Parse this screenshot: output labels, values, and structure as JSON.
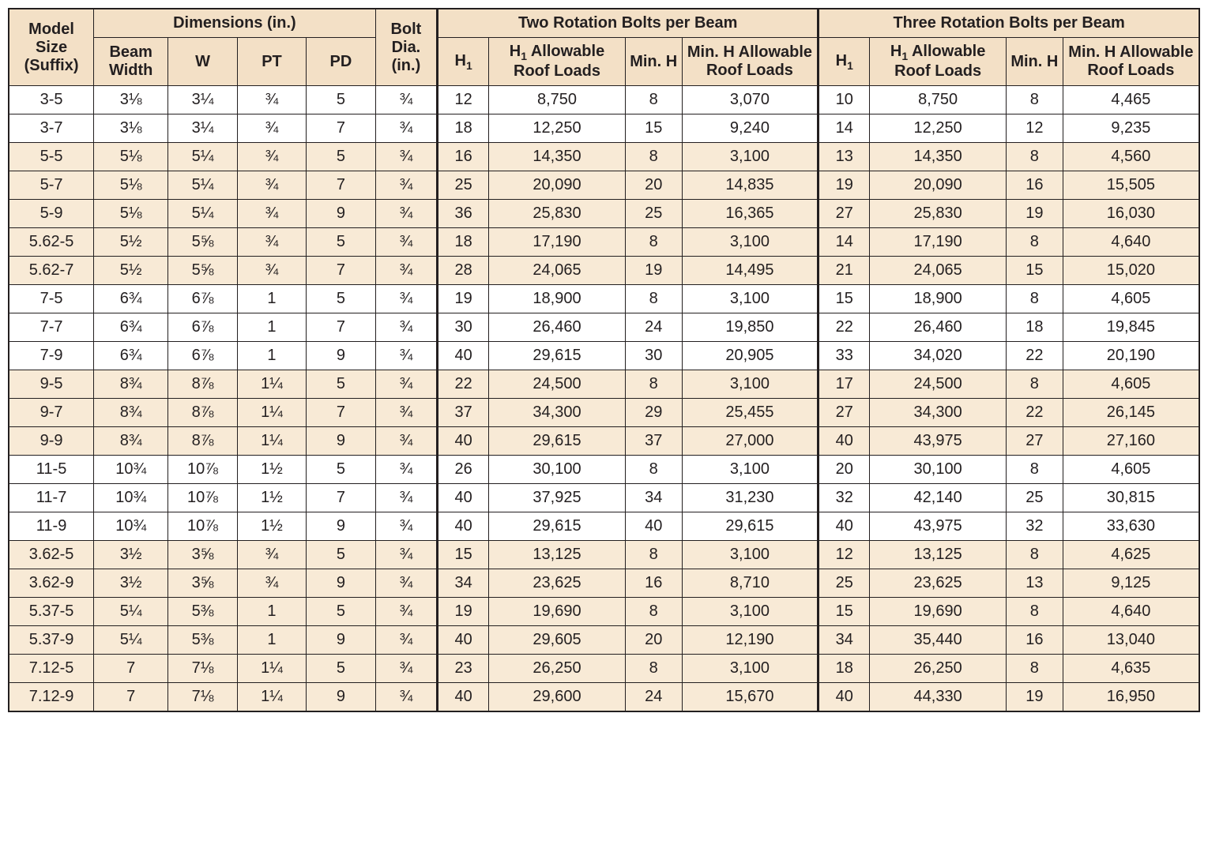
{
  "colors": {
    "header_bg": "#f3e0c6",
    "row_bg": "#ffffff",
    "row_tint_bg": "#f8ead6",
    "border": "#231f20",
    "text": "#231f20"
  },
  "typography": {
    "font_family": "Arial, Helvetica, sans-serif",
    "header_fontsize_pt": 16,
    "body_fontsize_pt": 15,
    "header_weight": 700,
    "body_weight": 400
  },
  "table": {
    "type": "table",
    "header": {
      "model_size": "Model Size (Suffix)",
      "dimensions_group": "Dimensions (in.)",
      "beam_width": "Beam Width",
      "w": "W",
      "pt": "PT",
      "pd": "PD",
      "bolt_dia": "Bolt Dia. (in.)",
      "two_bolts_group": "Two Rotation Bolts per Beam",
      "three_bolts_group": "Three Rotation Bolts per Beam",
      "h1": "H",
      "h1_sub": "1",
      "h1_loads": " Allowable Roof Loads",
      "min_h": "Min. H",
      "min_h_loads": "Min. H Allowable Roof Loads"
    },
    "columns": [
      "model",
      "beam_width",
      "w",
      "pt",
      "pd",
      "bolt_dia",
      "two_h1",
      "two_h1_load",
      "two_min_h",
      "two_min_h_load",
      "three_h1",
      "three_h1_load",
      "three_min_h",
      "three_min_h_load"
    ],
    "rows": [
      {
        "tint": false,
        "model": "3-5",
        "beam_width": "3⅛",
        "w": "3¼",
        "pt": "¾",
        "pd": "5",
        "bolt_dia": "¾",
        "two_h1": "12",
        "two_h1_load": "8,750",
        "two_min_h": "8",
        "two_min_h_load": "3,070",
        "three_h1": "10",
        "three_h1_load": "8,750",
        "three_min_h": "8",
        "three_min_h_load": "4,465"
      },
      {
        "tint": false,
        "model": "3-7",
        "beam_width": "3⅛",
        "w": "3¼",
        "pt": "¾",
        "pd": "7",
        "bolt_dia": "¾",
        "two_h1": "18",
        "two_h1_load": "12,250",
        "two_min_h": "15",
        "two_min_h_load": "9,240",
        "three_h1": "14",
        "three_h1_load": "12,250",
        "three_min_h": "12",
        "three_min_h_load": "9,235"
      },
      {
        "tint": true,
        "model": "5-5",
        "beam_width": "5⅛",
        "w": "5¼",
        "pt": "¾",
        "pd": "5",
        "bolt_dia": "¾",
        "two_h1": "16",
        "two_h1_load": "14,350",
        "two_min_h": "8",
        "two_min_h_load": "3,100",
        "three_h1": "13",
        "three_h1_load": "14,350",
        "three_min_h": "8",
        "three_min_h_load": "4,560"
      },
      {
        "tint": true,
        "model": "5-7",
        "beam_width": "5⅛",
        "w": "5¼",
        "pt": "¾",
        "pd": "7",
        "bolt_dia": "¾",
        "two_h1": "25",
        "two_h1_load": "20,090",
        "two_min_h": "20",
        "two_min_h_load": "14,835",
        "three_h1": "19",
        "three_h1_load": "20,090",
        "three_min_h": "16",
        "three_min_h_load": "15,505"
      },
      {
        "tint": true,
        "model": "5-9",
        "beam_width": "5⅛",
        "w": "5¼",
        "pt": "¾",
        "pd": "9",
        "bolt_dia": "¾",
        "two_h1": "36",
        "two_h1_load": "25,830",
        "two_min_h": "25",
        "two_min_h_load": "16,365",
        "three_h1": "27",
        "three_h1_load": "25,830",
        "three_min_h": "19",
        "three_min_h_load": "16,030"
      },
      {
        "tint": true,
        "model": "5.62-5",
        "beam_width": "5½",
        "w": "5⅝",
        "pt": "¾",
        "pd": "5",
        "bolt_dia": "¾",
        "two_h1": "18",
        "two_h1_load": "17,190",
        "two_min_h": "8",
        "two_min_h_load": "3,100",
        "three_h1": "14",
        "three_h1_load": "17,190",
        "three_min_h": "8",
        "three_min_h_load": "4,640"
      },
      {
        "tint": true,
        "model": "5.62-7",
        "beam_width": "5½",
        "w": "5⅝",
        "pt": "¾",
        "pd": "7",
        "bolt_dia": "¾",
        "two_h1": "28",
        "two_h1_load": "24,065",
        "two_min_h": "19",
        "two_min_h_load": "14,495",
        "three_h1": "21",
        "three_h1_load": "24,065",
        "three_min_h": "15",
        "three_min_h_load": "15,020"
      },
      {
        "tint": false,
        "model": "7-5",
        "beam_width": "6¾",
        "w": "6⅞",
        "pt": "1",
        "pd": "5",
        "bolt_dia": "¾",
        "two_h1": "19",
        "two_h1_load": "18,900",
        "two_min_h": "8",
        "two_min_h_load": "3,100",
        "three_h1": "15",
        "three_h1_load": "18,900",
        "three_min_h": "8",
        "three_min_h_load": "4,605"
      },
      {
        "tint": false,
        "model": "7-7",
        "beam_width": "6¾",
        "w": "6⅞",
        "pt": "1",
        "pd": "7",
        "bolt_dia": "¾",
        "two_h1": "30",
        "two_h1_load": "26,460",
        "two_min_h": "24",
        "two_min_h_load": "19,850",
        "three_h1": "22",
        "three_h1_load": "26,460",
        "three_min_h": "18",
        "three_min_h_load": "19,845"
      },
      {
        "tint": false,
        "model": "7-9",
        "beam_width": "6¾",
        "w": "6⅞",
        "pt": "1",
        "pd": "9",
        "bolt_dia": "¾",
        "two_h1": "40",
        "two_h1_load": "29,615",
        "two_min_h": "30",
        "two_min_h_load": "20,905",
        "three_h1": "33",
        "three_h1_load": "34,020",
        "three_min_h": "22",
        "three_min_h_load": "20,190"
      },
      {
        "tint": true,
        "model": "9-5",
        "beam_width": "8¾",
        "w": "8⅞",
        "pt": "1¼",
        "pd": "5",
        "bolt_dia": "¾",
        "two_h1": "22",
        "two_h1_load": "24,500",
        "two_min_h": "8",
        "two_min_h_load": "3,100",
        "three_h1": "17",
        "three_h1_load": "24,500",
        "three_min_h": "8",
        "three_min_h_load": "4,605"
      },
      {
        "tint": true,
        "model": "9-7",
        "beam_width": "8¾",
        "w": "8⅞",
        "pt": "1¼",
        "pd": "7",
        "bolt_dia": "¾",
        "two_h1": "37",
        "two_h1_load": "34,300",
        "two_min_h": "29",
        "two_min_h_load": "25,455",
        "three_h1": "27",
        "three_h1_load": "34,300",
        "three_min_h": "22",
        "three_min_h_load": "26,145"
      },
      {
        "tint": true,
        "model": "9-9",
        "beam_width": "8¾",
        "w": "8⅞",
        "pt": "1¼",
        "pd": "9",
        "bolt_dia": "¾",
        "two_h1": "40",
        "two_h1_load": "29,615",
        "two_min_h": "37",
        "two_min_h_load": "27,000",
        "three_h1": "40",
        "three_h1_load": "43,975",
        "three_min_h": "27",
        "three_min_h_load": "27,160"
      },
      {
        "tint": false,
        "model": "11-5",
        "beam_width": "10¾",
        "w": "10⅞",
        "pt": "1½",
        "pd": "5",
        "bolt_dia": "¾",
        "two_h1": "26",
        "two_h1_load": "30,100",
        "two_min_h": "8",
        "two_min_h_load": "3,100",
        "three_h1": "20",
        "three_h1_load": "30,100",
        "three_min_h": "8",
        "three_min_h_load": "4,605"
      },
      {
        "tint": false,
        "model": "11-7",
        "beam_width": "10¾",
        "w": "10⅞",
        "pt": "1½",
        "pd": "7",
        "bolt_dia": "¾",
        "two_h1": "40",
        "two_h1_load": "37,925",
        "two_min_h": "34",
        "two_min_h_load": "31,230",
        "three_h1": "32",
        "three_h1_load": "42,140",
        "three_min_h": "25",
        "three_min_h_load": "30,815"
      },
      {
        "tint": false,
        "model": "11-9",
        "beam_width": "10¾",
        "w": "10⅞",
        "pt": "1½",
        "pd": "9",
        "bolt_dia": "¾",
        "two_h1": "40",
        "two_h1_load": "29,615",
        "two_min_h": "40",
        "two_min_h_load": "29,615",
        "three_h1": "40",
        "three_h1_load": "43,975",
        "three_min_h": "32",
        "three_min_h_load": "33,630"
      },
      {
        "tint": true,
        "model": "3.62-5",
        "beam_width": "3½",
        "w": "3⅝",
        "pt": "¾",
        "pd": "5",
        "bolt_dia": "¾",
        "two_h1": "15",
        "two_h1_load": "13,125",
        "two_min_h": "8",
        "two_min_h_load": "3,100",
        "three_h1": "12",
        "three_h1_load": "13,125",
        "three_min_h": "8",
        "three_min_h_load": "4,625"
      },
      {
        "tint": true,
        "model": "3.62-9",
        "beam_width": "3½",
        "w": "3⅝",
        "pt": "¾",
        "pd": "9",
        "bolt_dia": "¾",
        "two_h1": "34",
        "two_h1_load": "23,625",
        "two_min_h": "16",
        "two_min_h_load": "8,710",
        "three_h1": "25",
        "three_h1_load": "23,625",
        "three_min_h": "13",
        "three_min_h_load": "9,125"
      },
      {
        "tint": true,
        "model": "5.37-5",
        "beam_width": "5¼",
        "w": "5⅜",
        "pt": "1",
        "pd": "5",
        "bolt_dia": "¾",
        "two_h1": "19",
        "two_h1_load": "19,690",
        "two_min_h": "8",
        "two_min_h_load": "3,100",
        "three_h1": "15",
        "three_h1_load": "19,690",
        "three_min_h": "8",
        "three_min_h_load": "4,640"
      },
      {
        "tint": true,
        "model": "5.37-9",
        "beam_width": "5¼",
        "w": "5⅜",
        "pt": "1",
        "pd": "9",
        "bolt_dia": "¾",
        "two_h1": "40",
        "two_h1_load": "29,605",
        "two_min_h": "20",
        "two_min_h_load": "12,190",
        "three_h1": "34",
        "three_h1_load": "35,440",
        "three_min_h": "16",
        "three_min_h_load": "13,040"
      },
      {
        "tint": true,
        "model": "7.12-5",
        "beam_width": "7",
        "w": "7⅛",
        "pt": "1¼",
        "pd": "5",
        "bolt_dia": "¾",
        "two_h1": "23",
        "two_h1_load": "26,250",
        "two_min_h": "8",
        "two_min_h_load": "3,100",
        "three_h1": "18",
        "three_h1_load": "26,250",
        "three_min_h": "8",
        "three_min_h_load": "4,635"
      },
      {
        "tint": true,
        "model": "7.12-9",
        "beam_width": "7",
        "w": "7⅛",
        "pt": "1¼",
        "pd": "9",
        "bolt_dia": "¾",
        "two_h1": "40",
        "two_h1_load": "29,600",
        "two_min_h": "24",
        "two_min_h_load": "15,670",
        "three_h1": "40",
        "three_h1_load": "44,330",
        "three_min_h": "19",
        "three_min_h_load": "16,950"
      }
    ]
  }
}
